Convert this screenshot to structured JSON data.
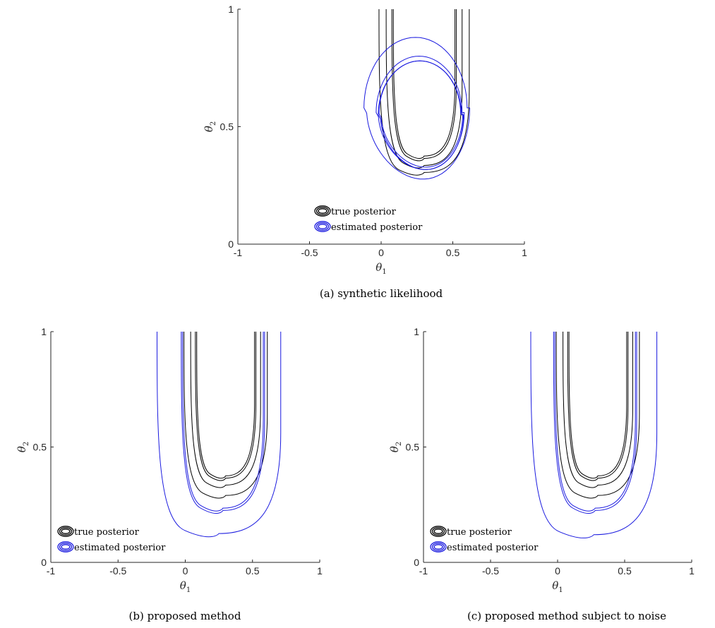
{
  "colors": {
    "true": "#000000",
    "estimated": "#1a1adf",
    "axis": "#262626"
  },
  "chart_data": [
    {
      "type": "contour",
      "caption": "(a) synthetic likelihood",
      "xlabel": "θ1",
      "ylabel": "θ2",
      "xlim": [
        -1,
        1
      ],
      "ylim": [
        0,
        1
      ],
      "xticks": [
        "-1",
        "-0.5",
        "0",
        "0.5",
        "1"
      ],
      "yticks": [
        "0",
        "0.5",
        "1"
      ],
      "legend": [
        "true posterior",
        "estimated posterior"
      ],
      "legend_position": "bottom-center",
      "series": [
        {
          "name": "true posterior",
          "kind": "true",
          "levels": [
            {
              "cx": 0.3,
              "bottom": 0.375,
              "top": 1.0,
              "hw": 0.215
            },
            {
              "cx": 0.3,
              "bottom": 0.365,
              "top": 1.0,
              "hw": 0.225
            },
            {
              "cx": 0.3,
              "bottom": 0.335,
              "top": 1.0,
              "hw": 0.265
            },
            {
              "cx": 0.3,
              "bottom": 0.305,
              "top": 1.0,
              "hw": 0.315
            }
          ]
        },
        {
          "name": "estimated posterior",
          "kind": "estimated",
          "levels": [
            {
              "cx": 0.27,
              "cy": 0.555,
              "rx": 0.285,
              "ry": 0.225
            },
            {
              "cx": 0.27,
              "cy": 0.55,
              "rx": 0.29,
              "ry": 0.23
            },
            {
              "cx": 0.265,
              "cy": 0.56,
              "rx": 0.3,
              "ry": 0.24
            },
            {
              "cx": 0.24,
              "cy": 0.58,
              "rx": 0.36,
              "ry": 0.3
            }
          ]
        }
      ]
    },
    {
      "type": "contour",
      "caption": "(b) proposed method",
      "xlabel": "θ1",
      "ylabel": "θ2",
      "xlim": [
        -1,
        1
      ],
      "ylim": [
        0,
        1
      ],
      "xticks": [
        "-1",
        "-0.5",
        "0",
        "0.5",
        "1"
      ],
      "yticks": [
        "0",
        "0.5",
        "1"
      ],
      "legend": [
        "true posterior",
        "estimated posterior"
      ],
      "legend_position": "bottom-left",
      "series": [
        {
          "name": "true posterior",
          "kind": "true",
          "levels": [
            {
              "cx": 0.3,
              "bottom": 0.375,
              "top": 1.0,
              "hw": 0.215
            },
            {
              "cx": 0.3,
              "bottom": 0.365,
              "top": 1.0,
              "hw": 0.225
            },
            {
              "cx": 0.3,
              "bottom": 0.335,
              "top": 1.0,
              "hw": 0.26
            },
            {
              "cx": 0.3,
              "bottom": 0.29,
              "top": 1.0,
              "hw": 0.31
            }
          ]
        },
        {
          "name": "estimated posterior",
          "kind": "estimated",
          "levels": [
            {
              "cx": 0.28,
              "bottom": 0.235,
              "top": 1.0,
              "hw": 0.3
            },
            {
              "cx": 0.28,
              "bottom": 0.225,
              "top": 1.0,
              "hw": 0.31
            },
            {
              "cx": 0.25,
              "bottom": 0.125,
              "top": 1.0,
              "hw": 0.46
            }
          ]
        }
      ]
    },
    {
      "type": "contour",
      "caption": "(c) proposed method subject to noise",
      "xlabel": "θ1",
      "ylabel": "θ2",
      "xlim": [
        -1,
        1
      ],
      "ylim": [
        0,
        1
      ],
      "xticks": [
        "-1",
        "-0.5",
        "0",
        "0.5",
        "1"
      ],
      "yticks": [
        "0",
        "0.5",
        "1"
      ],
      "legend": [
        "true posterior",
        "estimated posterior"
      ],
      "legend_position": "bottom-left",
      "series": [
        {
          "name": "true posterior",
          "kind": "true",
          "levels": [
            {
              "cx": 0.3,
              "bottom": 0.375,
              "top": 1.0,
              "hw": 0.215
            },
            {
              "cx": 0.3,
              "bottom": 0.365,
              "top": 1.0,
              "hw": 0.225
            },
            {
              "cx": 0.3,
              "bottom": 0.335,
              "top": 1.0,
              "hw": 0.26
            },
            {
              "cx": 0.3,
              "bottom": 0.29,
              "top": 1.0,
              "hw": 0.31
            }
          ]
        },
        {
          "name": "estimated posterior",
          "kind": "estimated",
          "levels": [
            {
              "cx": 0.28,
              "bottom": 0.235,
              "top": 1.0,
              "hw": 0.3
            },
            {
              "cx": 0.28,
              "bottom": 0.225,
              "top": 1.0,
              "hw": 0.31
            },
            {
              "cx": 0.27,
              "bottom": 0.12,
              "top": 1.0,
              "hw": 0.47
            }
          ]
        }
      ]
    }
  ]
}
